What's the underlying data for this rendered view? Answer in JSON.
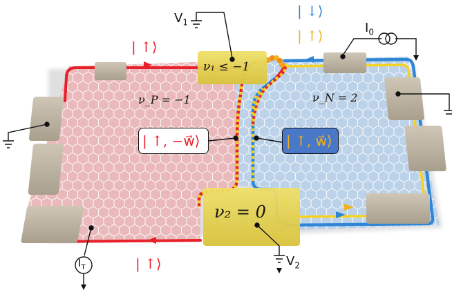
{
  "labels": {
    "spin_up_top": "| ↑⟩",
    "spin_up_bottom": "| ↑⟩",
    "spin_down_blue": "| ↓⟩",
    "spin_up_gold": "| ↑⟩",
    "nu1": "ν₁ ≤ −1",
    "nuP": "ν_P = −1",
    "nuN": "ν_N = 2",
    "nu2": "ν₂ = 0",
    "state_minus_w": "| ↑, −w⃗⟩",
    "state_w": "| ↑, w⃗⟩",
    "V1": "V",
    "V1_sub": "1",
    "V2": "V",
    "V2_sub": "2",
    "I0": "I",
    "I0_sub": "0",
    "IT": "I",
    "IT_sub": "T"
  },
  "colors": {
    "p_region": "#e9b9bb",
    "n_region": "#b9cfe6",
    "red_edge": "#e8202a",
    "blue_edge": "#2f86d6",
    "yellow_edge": "#f5d21e",
    "gate": "#e9d650",
    "contact": "#bcb2a0"
  }
}
